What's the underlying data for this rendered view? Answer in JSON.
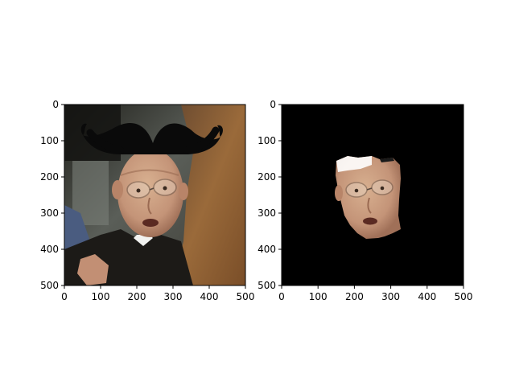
{
  "chart_data": [
    {
      "type": "image",
      "image_content": "photo of a bald older man with glasses wearing a clerical collar, with a large black cartoon mustache overlaid above his head",
      "xlim": [
        0,
        500
      ],
      "ylim": [
        500,
        0
      ],
      "x_ticks": [
        0,
        100,
        200,
        300,
        400,
        500
      ],
      "y_ticks": [
        0,
        100,
        200,
        300,
        400,
        500
      ],
      "x_tick_labels": [
        "0",
        "100",
        "200",
        "300",
        "400",
        "500"
      ],
      "y_tick_labels": [
        "0",
        "100",
        "200",
        "300",
        "400",
        "500"
      ],
      "title": "",
      "xlabel": "",
      "ylabel": ""
    },
    {
      "type": "image",
      "image_content": "segmented face of the same man on a black background",
      "xlim": [
        0,
        500
      ],
      "ylim": [
        500,
        0
      ],
      "x_ticks": [
        0,
        100,
        200,
        300,
        400,
        500
      ],
      "y_ticks": [
        0,
        100,
        200,
        300,
        400,
        500
      ],
      "x_tick_labels": [
        "0",
        "100",
        "200",
        "300",
        "400",
        "500"
      ],
      "y_tick_labels": [
        "0",
        "100",
        "200",
        "300",
        "400",
        "500"
      ],
      "title": "",
      "xlabel": "",
      "ylabel": ""
    }
  ],
  "colors": {
    "skin": "#c9a080",
    "skin_shadow": "#a97a5c",
    "mustache": "#0a0a0a",
    "background_left": "#3a3a30",
    "hair_right": "#8a5a30",
    "jacket": "#1c1a17",
    "mask_background": "#000000"
  }
}
